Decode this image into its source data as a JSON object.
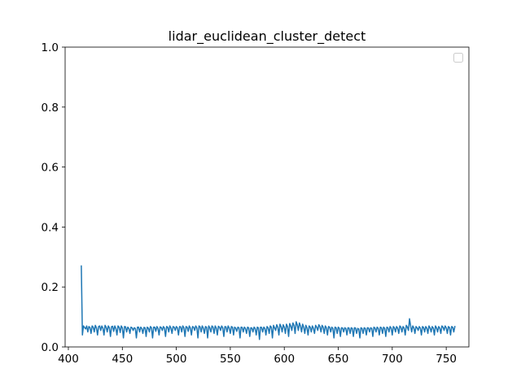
{
  "chart_data": {
    "type": "line",
    "title": "lidar_euclidean_cluster_detect",
    "xlabel": "",
    "ylabel": "",
    "xlim": [
      397,
      771
    ],
    "ylim": [
      0.0,
      1.0
    ],
    "xticks": [
      400,
      450,
      500,
      550,
      600,
      650,
      700,
      750
    ],
    "yticks": [
      0.0,
      0.2,
      0.4,
      0.6,
      0.8,
      1.0
    ],
    "xtick_labels": [
      "400",
      "450",
      "500",
      "550",
      "600",
      "650",
      "700",
      "750"
    ],
    "ytick_labels": [
      "0.0",
      "0.2",
      "0.4",
      "0.6",
      "0.8",
      "1.0"
    ],
    "legend": {
      "placement": "top-right",
      "entries": []
    },
    "grid": false,
    "series": [
      {
        "name": "lidar_euclidean_cluster_detect",
        "color": "#1f77b4",
        "x_start": 412,
        "x_step": 1,
        "values": [
          0.27,
          0.04,
          0.07,
          0.065,
          0.06,
          0.07,
          0.05,
          0.068,
          0.065,
          0.045,
          0.07,
          0.066,
          0.05,
          0.072,
          0.064,
          0.04,
          0.068,
          0.07,
          0.055,
          0.07,
          0.063,
          0.04,
          0.072,
          0.066,
          0.05,
          0.07,
          0.064,
          0.035,
          0.068,
          0.069,
          0.052,
          0.07,
          0.062,
          0.04,
          0.07,
          0.066,
          0.048,
          0.07,
          0.064,
          0.03,
          0.068,
          0.067,
          0.05,
          0.066,
          0.062,
          0.045,
          0.066,
          0.064,
          0.055,
          0.064,
          0.062,
          0.03,
          0.066,
          0.066,
          0.05,
          0.066,
          0.062,
          0.045,
          0.065,
          0.064,
          0.035,
          0.066,
          0.063,
          0.05,
          0.068,
          0.064,
          0.03,
          0.066,
          0.066,
          0.052,
          0.068,
          0.062,
          0.04,
          0.067,
          0.065,
          0.055,
          0.068,
          0.063,
          0.035,
          0.068,
          0.066,
          0.05,
          0.07,
          0.063,
          0.045,
          0.068,
          0.066,
          0.055,
          0.068,
          0.064,
          0.04,
          0.068,
          0.067,
          0.05,
          0.07,
          0.064,
          0.035,
          0.068,
          0.066,
          0.052,
          0.07,
          0.063,
          0.04,
          0.068,
          0.066,
          0.055,
          0.07,
          0.064,
          0.03,
          0.07,
          0.067,
          0.05,
          0.07,
          0.063,
          0.045,
          0.068,
          0.066,
          0.03,
          0.07,
          0.064,
          0.05,
          0.07,
          0.066,
          0.045,
          0.07,
          0.063,
          0.04,
          0.069,
          0.066,
          0.055,
          0.07,
          0.064,
          0.035,
          0.068,
          0.067,
          0.05,
          0.07,
          0.063,
          0.045,
          0.068,
          0.066,
          0.04,
          0.066,
          0.063,
          0.052,
          0.066,
          0.064,
          0.03,
          0.066,
          0.065,
          0.05,
          0.066,
          0.062,
          0.045,
          0.066,
          0.064,
          0.035,
          0.064,
          0.063,
          0.05,
          0.066,
          0.062,
          0.04,
          0.066,
          0.064,
          0.025,
          0.066,
          0.065,
          0.05,
          0.066,
          0.062,
          0.04,
          0.068,
          0.064,
          0.045,
          0.07,
          0.066,
          0.03,
          0.072,
          0.064,
          0.055,
          0.074,
          0.066,
          0.04,
          0.076,
          0.068,
          0.05,
          0.074,
          0.066,
          0.045,
          0.076,
          0.068,
          0.035,
          0.078,
          0.07,
          0.055,
          0.08,
          0.072,
          0.045,
          0.084,
          0.074,
          0.055,
          0.08,
          0.07,
          0.05,
          0.076,
          0.066,
          0.045,
          0.072,
          0.064,
          0.04,
          0.07,
          0.066,
          0.05,
          0.07,
          0.062,
          0.045,
          0.072,
          0.066,
          0.055,
          0.074,
          0.068,
          0.05,
          0.072,
          0.066,
          0.045,
          0.07,
          0.064,
          0.04,
          0.068,
          0.066,
          0.05,
          0.066,
          0.062,
          0.03,
          0.066,
          0.064,
          0.045,
          0.066,
          0.062,
          0.035,
          0.064,
          0.063,
          0.05,
          0.064,
          0.062,
          0.04,
          0.064,
          0.063,
          0.045,
          0.064,
          0.062,
          0.035,
          0.064,
          0.063,
          0.045,
          0.062,
          0.06,
          0.03,
          0.064,
          0.062,
          0.045,
          0.064,
          0.062,
          0.04,
          0.064,
          0.063,
          0.05,
          0.064,
          0.062,
          0.035,
          0.066,
          0.063,
          0.05,
          0.066,
          0.062,
          0.04,
          0.066,
          0.064,
          0.045,
          0.066,
          0.062,
          0.035,
          0.066,
          0.064,
          0.05,
          0.068,
          0.063,
          0.04,
          0.068,
          0.064,
          0.05,
          0.068,
          0.063,
          0.045,
          0.07,
          0.066,
          0.05,
          0.068,
          0.063,
          0.04,
          0.072,
          0.066,
          0.055,
          0.094,
          0.07,
          0.05,
          0.07,
          0.064,
          0.045,
          0.068,
          0.064,
          0.055,
          0.068,
          0.063,
          0.04,
          0.068,
          0.065,
          0.05,
          0.068,
          0.063,
          0.045,
          0.07,
          0.064,
          0.05,
          0.068,
          0.063,
          0.04,
          0.07,
          0.064,
          0.05,
          0.068,
          0.063,
          0.045,
          0.07,
          0.066,
          0.055,
          0.07,
          0.064,
          0.045,
          0.068,
          0.065,
          0.04,
          0.068,
          0.066,
          0.05,
          0.068
        ]
      }
    ]
  }
}
